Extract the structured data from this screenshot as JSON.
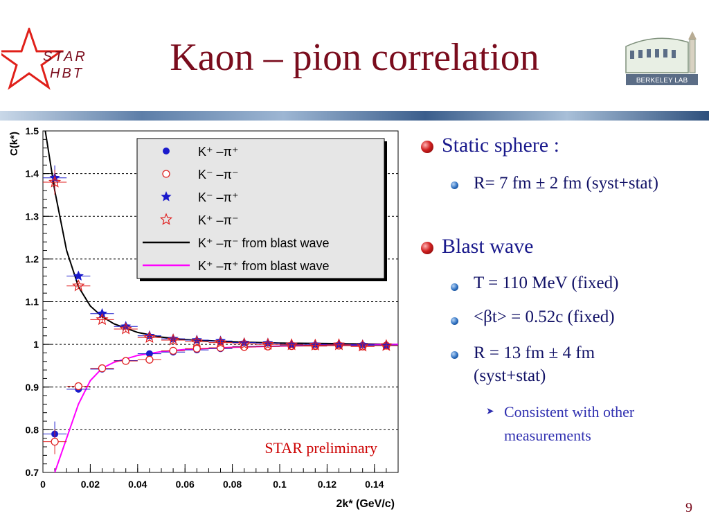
{
  "slide": {
    "title": "Kaon – pion correlation",
    "page_number": "9"
  },
  "logos": {
    "star_text_1": "STAR",
    "star_text_2": "HBT",
    "lab_text": "BERKELEY LAB"
  },
  "bullets": {
    "static_sphere": "Static sphere :",
    "static_radius": "R= 7 fm ± 2 fm (syst+stat)",
    "blast_wave": "Blast wave",
    "blast_T": "T = 110 MeV (fixed)",
    "blast_beta": "<βt> = 0.52c (fixed)",
    "blast_R": "R = 13 fm ± 4 fm (syst+stat)",
    "consistent": "Consistent with other measurements"
  },
  "chart_data": {
    "type": "scatter",
    "title": "",
    "xlabel": "2k* (GeV/c)",
    "ylabel": "C(k*)",
    "xlim": [
      0,
      0.15
    ],
    "ylim": [
      0.7,
      1.5
    ],
    "xticks": [
      "0",
      "0.02",
      "0.04",
      "0.06",
      "0.08",
      "0.1",
      "0.12",
      "0.14"
    ],
    "yticks": [
      "0.7",
      "0.8",
      "0.9",
      "1",
      "1.1",
      "1.2",
      "1.3",
      "1.4",
      "1.5"
    ],
    "grid": "horizontal dashed",
    "legend_position": "top-right",
    "annotation": "STAR preliminary",
    "series": [
      {
        "name": "K⁺ –π⁺",
        "marker": "filled-circle",
        "color": "#1a1acc",
        "x": [
          0.005,
          0.015,
          0.025,
          0.035,
          0.045,
          0.055,
          0.065,
          0.075,
          0.085,
          0.095,
          0.105,
          0.115,
          0.125,
          0.135,
          0.145
        ],
        "y": [
          0.79,
          0.895,
          0.942,
          0.962,
          0.978,
          0.982,
          0.987,
          0.99,
          0.995,
          0.996,
          0.997,
          0.997,
          0.998,
          0.998,
          0.998
        ]
      },
      {
        "name": "K⁻ –π⁻",
        "marker": "open-circle",
        "color": "#e02020",
        "x": [
          0.005,
          0.015,
          0.025,
          0.035,
          0.045,
          0.055,
          0.065,
          0.075,
          0.085,
          0.095,
          0.105,
          0.115,
          0.125,
          0.135,
          0.145
        ],
        "y": [
          0.772,
          0.902,
          0.944,
          0.961,
          0.964,
          0.985,
          0.99,
          0.992,
          0.994,
          0.995,
          0.996,
          0.996,
          0.997,
          0.995,
          0.997
        ]
      },
      {
        "name": "K⁻ –π⁺",
        "marker": "filled-star",
        "color": "#1a1acc",
        "x": [
          0.005,
          0.015,
          0.025,
          0.035,
          0.045,
          0.055,
          0.065,
          0.075,
          0.085,
          0.095,
          0.105,
          0.115,
          0.125,
          0.135,
          0.145
        ],
        "y": [
          1.39,
          1.16,
          1.072,
          1.042,
          1.02,
          1.013,
          1.01,
          1.008,
          1.004,
          1.003,
          1.0,
          1.0,
          1.0,
          0.999,
          0.998
        ]
      },
      {
        "name": "K⁺ –π⁻",
        "marker": "open-star",
        "color": "#e02020",
        "x": [
          0.005,
          0.015,
          0.025,
          0.035,
          0.045,
          0.055,
          0.065,
          0.075,
          0.085,
          0.095,
          0.105,
          0.115,
          0.125,
          0.135,
          0.145
        ],
        "y": [
          1.38,
          1.137,
          1.058,
          1.036,
          1.016,
          1.01,
          1.006,
          1.004,
          1.001,
          1.0,
          0.999,
          0.998,
          0.999,
          0.996,
          0.997
        ]
      },
      {
        "name": "K⁺ –π⁻ from blast wave",
        "marker": "line",
        "color": "#000000",
        "x": [
          0.001,
          0.005,
          0.01,
          0.015,
          0.02,
          0.025,
          0.03,
          0.04,
          0.05,
          0.06,
          0.08,
          0.1,
          0.12,
          0.15
        ],
        "y": [
          1.5,
          1.36,
          1.22,
          1.135,
          1.09,
          1.065,
          1.048,
          1.028,
          1.017,
          1.011,
          1.006,
          1.003,
          1.002,
          1.0
        ]
      },
      {
        "name": "K⁺ –π⁺ from blast wave",
        "marker": "line",
        "color": "#ff00ff",
        "x": [
          0.005,
          0.01,
          0.015,
          0.02,
          0.025,
          0.03,
          0.04,
          0.05,
          0.06,
          0.08,
          0.1,
          0.12,
          0.15
        ],
        "y": [
          0.7,
          0.78,
          0.86,
          0.915,
          0.944,
          0.958,
          0.974,
          0.983,
          0.988,
          0.993,
          0.996,
          0.998,
          1.0
        ]
      }
    ]
  }
}
